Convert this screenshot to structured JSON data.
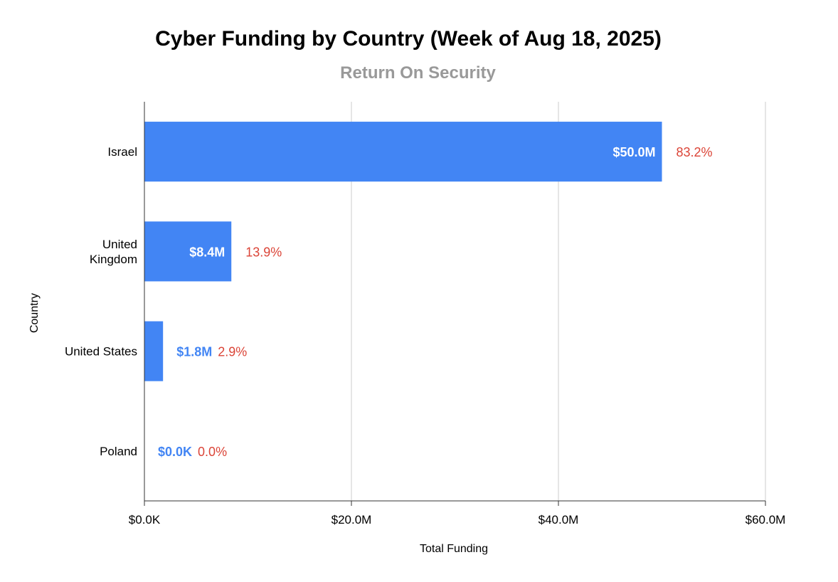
{
  "chart_data": {
    "type": "bar",
    "orientation": "horizontal",
    "title": "Cyber Funding by Country (Week of Aug 18, 2025)",
    "subtitle": "Return On Security",
    "xlabel": "Total Funding",
    "ylabel": "Country",
    "xlim": [
      0,
      60
    ],
    "x_unit": "$M",
    "x_ticks": [
      0,
      20,
      40,
      60
    ],
    "x_tick_labels": [
      "$0.0K",
      "$20.0M",
      "$40.0M",
      "$60.0M"
    ],
    "grid": "vertical",
    "categories": [
      "Israel",
      "United Kingdom",
      "United States",
      "Poland"
    ],
    "category_label_lines": [
      [
        "Israel"
      ],
      [
        "United",
        "Kingdom"
      ],
      [
        "United States"
      ],
      [
        "Poland"
      ]
    ],
    "values": [
      50.0,
      8.4,
      1.8,
      0.0
    ],
    "value_labels": [
      "$50.0M",
      "$8.4M",
      "$1.8M",
      "$0.0K"
    ],
    "value_label_position": [
      "inside",
      "inside",
      "outside",
      "outside"
    ],
    "percent_labels": [
      "83.2%",
      "13.9%",
      "2.9%",
      "0.0%"
    ]
  },
  "colors": {
    "bar": "#4285f4",
    "inside_label": "#ffffff",
    "percent_label": "#db4437",
    "subtitle": "#999999",
    "grid": "#cccccc",
    "axis": "#333333"
  }
}
